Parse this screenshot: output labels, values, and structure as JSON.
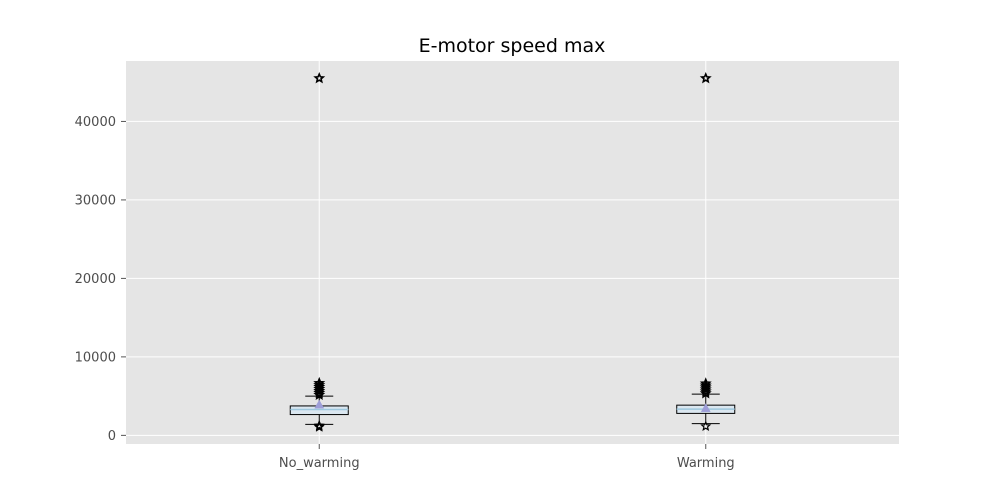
{
  "chart_data": {
    "type": "box",
    "title": "E-motor speed max",
    "xlabel": "",
    "ylabel": "",
    "categories": [
      "No_warming",
      "Warming"
    ],
    "ylim": [
      -1100,
      47700
    ],
    "yticks": [
      0,
      10000,
      20000,
      30000,
      40000
    ],
    "grid": true,
    "boxes": [
      {
        "category": "No_warming",
        "whisker_low": 1400,
        "q1": 2650,
        "median": 3300,
        "q3": 3750,
        "whisker_high": 5000,
        "mean": 3850,
        "outliers_high": [
          5150,
          5400,
          5650,
          5900,
          6150,
          6400,
          6650,
          45500
        ],
        "outliers_low": [
          1050,
          1150,
          1250
        ]
      },
      {
        "category": "Warming",
        "whisker_low": 1500,
        "q1": 2800,
        "median": 3350,
        "q3": 3850,
        "whisker_high": 5250,
        "mean": 3400,
        "outliers_high": [
          5350,
          5600,
          5850,
          6100,
          6350,
          6600,
          45500
        ],
        "outliers_low": [
          1150
        ]
      }
    ],
    "colors": {
      "plot_background": "#e5e5e5",
      "grid": "#ffffff",
      "box_fill": "#dbe7f0",
      "box_edge": "#000000",
      "median": "#9ec8de",
      "mean_marker": "#9e9ed8",
      "tick_label": "#4d4d4d"
    }
  }
}
